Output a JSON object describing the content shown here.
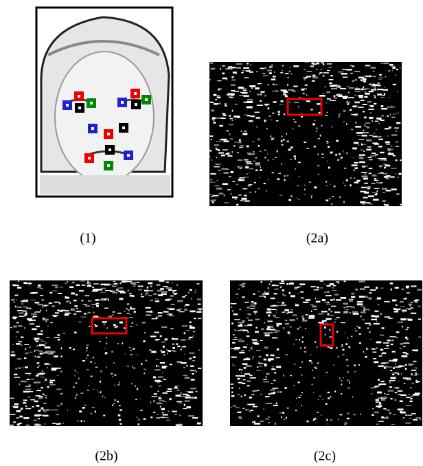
{
  "panels": [
    {
      "label": "(1)"
    },
    {
      "label": "(2a)"
    },
    {
      "label": "(2b)"
    },
    {
      "label": "(2c)"
    }
  ]
}
